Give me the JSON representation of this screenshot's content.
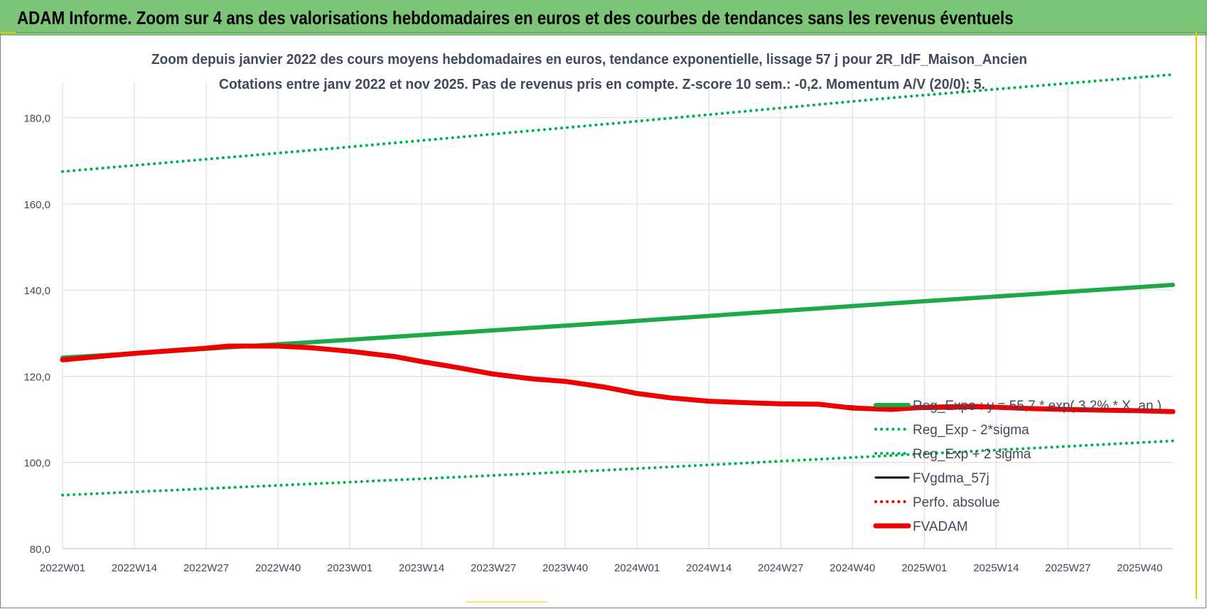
{
  "header": {
    "title": "ADAM Informe. Zoom sur 4 ans des valorisations hebdomadaires en euros et des courbes de tendances sans les revenus éventuels"
  },
  "colors": {
    "header_bg": "#7cc576",
    "trend_green": "#1fa84a",
    "dotted_green": "#00b050",
    "fvgdma": "#000000",
    "perfo": "#e00000",
    "fvadam": "#ee0000",
    "grid": "#d9d9d9"
  },
  "chart_data": {
    "type": "line",
    "title_line1": "Zoom depuis janvier 2022 des cours moyens hebdomadaires en euros, tendance exponentielle, lissage 57 j pour 2R_IdF_Maison_Ancien",
    "title_line2": "Cotations entre janv 2022 et nov 2025. Pas de revenus pris en compte. Z-score 10 sem.: -0,2. Momentum A/V (20/0): 5.",
    "ylim": [
      80,
      190
    ],
    "yticks": [
      "80,0",
      "100,0",
      "120,0",
      "140,0",
      "160,0",
      "180,0"
    ],
    "ytick_values": [
      80,
      100,
      120,
      140,
      160,
      180
    ],
    "xlim": [
      0,
      201
    ],
    "xticks": [
      "2022W01",
      "2022W14",
      "2022W27",
      "2022W40",
      "2023W01",
      "2023W14",
      "2023W27",
      "2023W40",
      "2024W01",
      "2024W14",
      "2024W27",
      "2024W40",
      "2025W01",
      "2025W14",
      "2025W27",
      "2025W40"
    ],
    "xtick_positions": [
      0,
      13,
      26,
      39,
      52,
      65,
      78,
      91,
      104,
      117,
      130,
      143,
      156,
      169,
      182,
      195
    ],
    "legend_position": "right",
    "series": [
      {
        "name": "Reg_Expo : y = 55,7 * exp( 3,2% * X_an )",
        "style": "solid-thick",
        "color": "#1fa84a",
        "x": [
          0,
          25,
          50,
          75,
          100,
          125,
          150,
          175,
          201
        ],
        "values": [
          124.3,
          126.3,
          128.3,
          130.4,
          132.5,
          134.7,
          136.9,
          139.0,
          141.2
        ]
      },
      {
        "name": "Reg_Exp - 2*sigma",
        "style": "dotted",
        "color": "#00b050",
        "x": [
          0,
          50,
          100,
          150,
          201
        ],
        "values": [
          92.4,
          95.3,
          98.3,
          101.6,
          105.0
        ]
      },
      {
        "name": "Reg_Exp + 2 sigma",
        "style": "dotted",
        "color": "#00b050",
        "x": [
          0,
          50,
          100,
          150,
          201
        ],
        "values": [
          167.5,
          173.0,
          178.7,
          184.6,
          190.0
        ]
      },
      {
        "name": "FVgdma_57j",
        "style": "solid",
        "color": "#000000",
        "x": [
          0,
          13,
          26,
          30,
          39,
          45,
          52,
          60,
          65,
          72,
          78,
          85,
          91,
          98,
          104,
          110,
          117,
          125,
          130,
          137,
          143,
          150,
          156,
          165,
          175,
          185,
          195,
          201
        ],
        "values": [
          123.8,
          125.3,
          126.3,
          126.8,
          126.8,
          126.5,
          125.8,
          124.5,
          123.3,
          121.8,
          120.3,
          119.3,
          118.7,
          117.2,
          115.9,
          114.9,
          114.3,
          113.7,
          113.6,
          113.4,
          113.0,
          112.3,
          112.4,
          112.6,
          112.4,
          112.1,
          112.0,
          111.9
        ]
      },
      {
        "name": "Perfo. absolue",
        "style": "dotted",
        "color": "#e00000",
        "x": [],
        "values": []
      },
      {
        "name": "FVADAM",
        "style": "solid-thick",
        "color": "#ee0000",
        "x": [
          0,
          13,
          26,
          30,
          39,
          45,
          52,
          60,
          65,
          72,
          78,
          85,
          91,
          98,
          104,
          110,
          117,
          125,
          130,
          137,
          143,
          150,
          156,
          165,
          175,
          185,
          195,
          201
        ],
        "values": [
          123.8,
          125.3,
          126.5,
          127.0,
          127.0,
          126.6,
          125.8,
          124.6,
          123.4,
          121.9,
          120.5,
          119.4,
          118.8,
          117.5,
          116.0,
          115.0,
          114.2,
          113.8,
          113.6,
          113.5,
          112.6,
          112.3,
          112.8,
          113.0,
          112.5,
          112.2,
          112.0,
          111.8
        ]
      }
    ]
  }
}
